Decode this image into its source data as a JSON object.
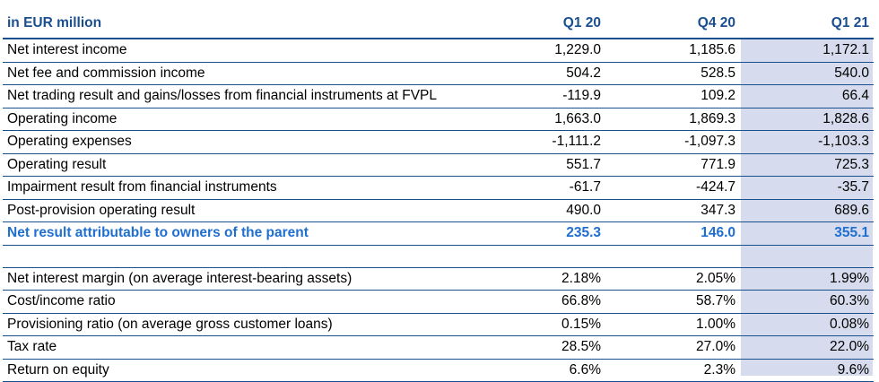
{
  "header": {
    "label": "in EUR million",
    "col1": "Q1 20",
    "col2": "Q4 20",
    "col3": "Q1 21"
  },
  "section1": [
    {
      "label": "Net interest income",
      "v1": "1,229.0",
      "v2": "1,185.6",
      "v3": "1,172.1"
    },
    {
      "label": "Net fee and commission income",
      "v1": "504.2",
      "v2": "528.5",
      "v3": "540.0"
    },
    {
      "label": "Net trading result and gains/losses from financial instruments at FVPL",
      "v1": "-119.9",
      "v2": "109.2",
      "v3": "66.4"
    },
    {
      "label": "Operating income",
      "v1": "1,663.0",
      "v2": "1,869.3",
      "v3": "1,828.6"
    },
    {
      "label": "Operating expenses",
      "v1": "-1,111.2",
      "v2": "-1,097.3",
      "v3": "-1,103.3"
    },
    {
      "label": "Operating result",
      "v1": "551.7",
      "v2": "771.9",
      "v3": "725.3"
    },
    {
      "label": "Impairment result from financial instruments",
      "v1": "-61.7",
      "v2": "-424.7",
      "v3": "-35.7"
    },
    {
      "label": "Post-provision operating result",
      "v1": "490.0",
      "v2": "347.3",
      "v3": "689.6"
    },
    {
      "label": "Net result attributable to owners of the parent",
      "v1": "235.3",
      "v2": "146.0",
      "v3": "355.1"
    }
  ],
  "section2": [
    {
      "label": "Net interest margin (on average interest-bearing assets)",
      "v1": "2.18%",
      "v2": "2.05%",
      "v3": "1.99%"
    },
    {
      "label": "Cost/income ratio",
      "v1": "66.8%",
      "v2": "58.7%",
      "v3": "60.3%"
    },
    {
      "label": "Provisioning ratio (on average gross customer loans)",
      "v1": "0.15%",
      "v2": "1.00%",
      "v3": "0.08%"
    },
    {
      "label": "Tax rate",
      "v1": "28.5%",
      "v2": "27.0%",
      "v3": "22.0%"
    },
    {
      "label": "Return on equity",
      "v1": "6.6%",
      "v2": "2.3%",
      "v3": "9.6%"
    }
  ],
  "colors": {
    "header_text": "#1a4f8f",
    "highlight_text": "#1f6fd1",
    "rule": "#1a4f8f",
    "column_shade": "#d6dced"
  }
}
